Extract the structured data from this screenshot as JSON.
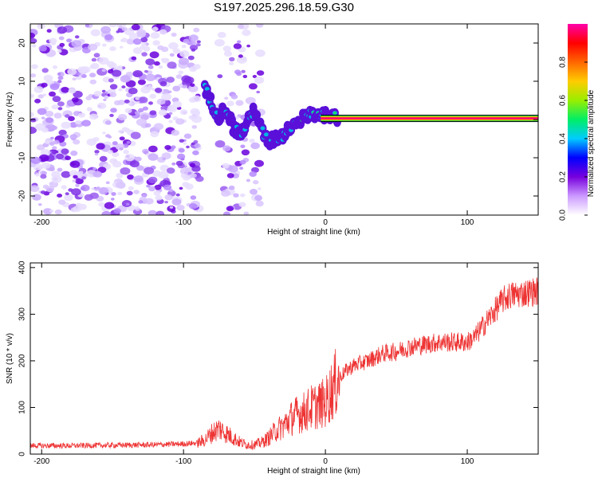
{
  "title": "S197.2025.296.18.59.G30",
  "chart_data": [
    {
      "type": "heatmap",
      "xlabel": "Height of straight line (km)",
      "ylabel": "Frequency (Hz)",
      "xlim": [
        -208,
        150
      ],
      "ylim": [
        -25,
        25
      ],
      "xticks": [
        -200,
        -100,
        0,
        100
      ],
      "yticks": [
        -20,
        -10,
        0,
        10,
        20
      ],
      "colorbar": {
        "label": "Normalized spectral amplitude",
        "range": [
          0,
          1
        ],
        "ticks": [
          "0.0",
          "0.2",
          "0.4",
          "0.6",
          "0.8"
        ],
        "colors": [
          "#ffffff",
          "#cc99ff",
          "#7700dd",
          "#0000ff",
          "#00ccff",
          "#00ee66",
          "#99ee00",
          "#ffcc00",
          "#ff6600",
          "#ff0000",
          "#ff00aa"
        ]
      },
      "features": [
        {
          "name": "diffuse noise",
          "x_range": [
            -208,
            -88
          ],
          "freq_range": [
            -25,
            25
          ],
          "level": 0.15
        },
        {
          "name": "noise band",
          "x_range": [
            -75,
            -45
          ],
          "freq_range": [
            -25,
            25
          ],
          "level": 0.08
        },
        {
          "name": "signal trace",
          "points": [
            [
              -85,
              8
            ],
            [
              -80,
              4
            ],
            [
              -75,
              1
            ],
            [
              -70,
              3
            ],
            [
              -65,
              -2
            ],
            [
              -60,
              -4
            ],
            [
              -55,
              -1
            ],
            [
              -50,
              3
            ],
            [
              -45,
              -3
            ],
            [
              -40,
              -6
            ],
            [
              -35,
              -5
            ],
            [
              -30,
              -4
            ],
            [
              -25,
              -2
            ],
            [
              -20,
              0
            ],
            [
              -15,
              0.5
            ],
            [
              -10,
              1
            ],
            [
              -5,
              1
            ],
            [
              0,
              0.8
            ],
            [
              10,
              0.5
            ],
            [
              150,
              0.5
            ]
          ]
        },
        {
          "name": "direct signal line",
          "x_range": [
            8,
            150
          ],
          "freq": 0.3,
          "level": 1.0
        }
      ]
    },
    {
      "type": "line",
      "xlabel": "Height of straight line (km)",
      "ylabel": "SNR (10 * v/v)",
      "xlim": [
        -208,
        150
      ],
      "ylim": [
        0,
        410
      ],
      "xticks": [
        -200,
        -100,
        0,
        100
      ],
      "yticks": [
        0,
        100,
        200,
        300,
        400
      ],
      "color": "#ee3333",
      "series": [
        {
          "name": "SNR",
          "x": [
            -208,
            -180,
            -150,
            -120,
            -100,
            -90,
            -85,
            -80,
            -75,
            -70,
            -65,
            -60,
            -55,
            -50,
            -45,
            -40,
            -35,
            -30,
            -25,
            -20,
            -15,
            -10,
            -5,
            0,
            5,
            10,
            15,
            20,
            30,
            40,
            50,
            60,
            70,
            80,
            90,
            100,
            105,
            110,
            115,
            120,
            125,
            130,
            140,
            150
          ],
          "values": [
            18,
            18,
            19,
            20,
            22,
            24,
            30,
            45,
            55,
            45,
            35,
            25,
            20,
            20,
            25,
            35,
            50,
            60,
            75,
            85,
            90,
            100,
            105,
            110,
            140,
            165,
            180,
            190,
            200,
            215,
            220,
            230,
            235,
            240,
            240,
            240,
            250,
            270,
            290,
            310,
            330,
            340,
            345,
            350
          ]
        }
      ]
    }
  ]
}
